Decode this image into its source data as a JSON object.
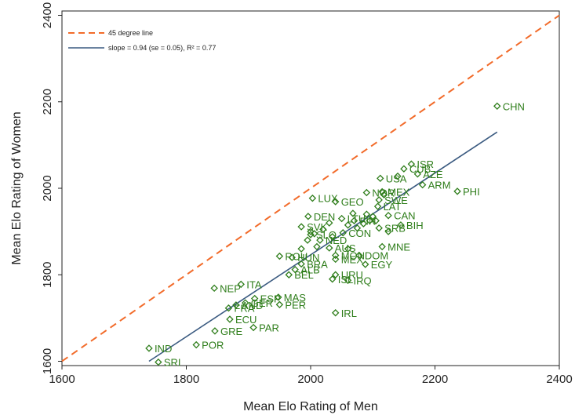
{
  "chart_data": {
    "type": "scatter",
    "xlabel": "Mean Elo Rating of Men",
    "ylabel": "Mean Elo Rating of Women",
    "xlim": [
      1600,
      2400
    ],
    "ylim": [
      1590,
      2410
    ],
    "xticks": [
      "1600",
      "1800",
      "2000",
      "2200",
      "2400"
    ],
    "yticks": [
      "1600",
      "1800",
      "2000",
      "2200",
      "2400"
    ],
    "grid": false,
    "legend_position": "top-left",
    "legend": [
      {
        "label": "45 degree line",
        "style": "dashed",
        "color": "#f26b2a"
      },
      {
        "label": "slope = 0.94 (se = 0.05), R² = 0.77",
        "style": "solid",
        "color": "#3a5a80"
      }
    ],
    "reference_line": {
      "x": [
        1600,
        2400
      ],
      "y": [
        1600,
        2400
      ]
    },
    "fit_line": {
      "x": [
        1740,
        2300
      ],
      "y": [
        1600,
        2130
      ]
    },
    "marker_color": "#2e7d1a",
    "points": [
      {
        "label": "CHN",
        "x": 2300,
        "y": 2190
      },
      {
        "label": "PHI",
        "x": 2236,
        "y": 1993
      },
      {
        "label": "ISR",
        "x": 2162,
        "y": 2056
      },
      {
        "label": "CUB",
        "x": 2150,
        "y": 2045
      },
      {
        "label": "AZE",
        "x": 2172,
        "y": 2033
      },
      {
        "label": "ARM",
        "x": 2180,
        "y": 2008
      },
      {
        "label": "USA",
        "x": 2112,
        "y": 2023
      },
      {
        "label": "NOR",
        "x": 2090,
        "y": 1990
      },
      {
        "label": "MEX",
        "x": 2115,
        "y": 1992
      },
      {
        "label": "SWE",
        "x": 2110,
        "y": 1973
      },
      {
        "label": "LAT",
        "x": 2108,
        "y": 1958
      },
      {
        "label": "CAN",
        "x": 2125,
        "y": 1937
      },
      {
        "label": "BIH",
        "x": 2145,
        "y": 1915
      },
      {
        "label": "SRB",
        "x": 2110,
        "y": 1908
      },
      {
        "label": "LUX",
        "x": 2003,
        "y": 1977
      },
      {
        "label": "GEO",
        "x": 2040,
        "y": 1969
      },
      {
        "label": "DEN",
        "x": 1996,
        "y": 1935
      },
      {
        "label": "SVK",
        "x": 1985,
        "y": 1911
      },
      {
        "label": "LTU",
        "x": 2050,
        "y": 1930
      },
      {
        "label": "FIN",
        "x": 2070,
        "y": 1925
      },
      {
        "label": "CON",
        "x": 2052,
        "y": 1897
      },
      {
        "label": "SLO",
        "x": 2000,
        "y": 1893
      },
      {
        "label": "NED",
        "x": 2015,
        "y": 1880
      },
      {
        "label": "IRL",
        "x": 2040,
        "y": 1712
      },
      {
        "label": "AUS",
        "x": 2030,
        "y": 1862
      },
      {
        "label": "MON",
        "x": 2040,
        "y": 1845
      },
      {
        "label": "MNE",
        "x": 2115,
        "y": 1865
      },
      {
        "label": "DOM",
        "x": 2078,
        "y": 1845
      },
      {
        "label": "MEX",
        "x": 2040,
        "y": 1836
      },
      {
        "label": "EGY",
        "x": 2088,
        "y": 1824
      },
      {
        "label": "ROU",
        "x": 1950,
        "y": 1843
      },
      {
        "label": "HUN",
        "x": 1970,
        "y": 1840
      },
      {
        "label": "BRA",
        "x": 1985,
        "y": 1825
      },
      {
        "label": "ALB",
        "x": 1975,
        "y": 1812
      },
      {
        "label": "BEL",
        "x": 1965,
        "y": 1800
      },
      {
        "label": "URU",
        "x": 2040,
        "y": 1800
      },
      {
        "label": "ISL",
        "x": 2035,
        "y": 1790
      },
      {
        "label": "IRQ",
        "x": 2060,
        "y": 1787
      },
      {
        "label": "NEP",
        "x": 1845,
        "y": 1769
      },
      {
        "label": "ITA",
        "x": 1888,
        "y": 1778
      },
      {
        "label": "ESP",
        "x": 1910,
        "y": 1745
      },
      {
        "label": "MAS",
        "x": 1948,
        "y": 1748
      },
      {
        "label": "PER",
        "x": 1950,
        "y": 1731
      },
      {
        "label": "GER",
        "x": 1895,
        "y": 1735
      },
      {
        "label": "AND",
        "x": 1880,
        "y": 1730
      },
      {
        "label": "FRA",
        "x": 1868,
        "y": 1723
      },
      {
        "label": "ECU",
        "x": 1870,
        "y": 1697
      },
      {
        "label": "PAR",
        "x": 1908,
        "y": 1678
      },
      {
        "label": "GRE",
        "x": 1846,
        "y": 1670
      },
      {
        "label": "POR",
        "x": 1816,
        "y": 1638
      },
      {
        "label": "IND",
        "x": 1740,
        "y": 1630
      },
      {
        "label": "SRI",
        "x": 1755,
        "y": 1598
      }
    ],
    "extra_markers": [
      {
        "x": 2090,
        "y": 1940
      },
      {
        "x": 2095,
        "y": 1925
      },
      {
        "x": 2085,
        "y": 1918
      },
      {
        "x": 2060,
        "y": 1915
      },
      {
        "x": 2030,
        "y": 1920
      },
      {
        "x": 2020,
        "y": 1905
      },
      {
        "x": 2010,
        "y": 1865
      },
      {
        "x": 1995,
        "y": 1880
      },
      {
        "x": 2068,
        "y": 1942
      },
      {
        "x": 2125,
        "y": 1900
      },
      {
        "x": 2100,
        "y": 1935
      },
      {
        "x": 2060,
        "y": 1860
      },
      {
        "x": 2105,
        "y": 1925
      },
      {
        "x": 2075,
        "y": 1908
      },
      {
        "x": 2035,
        "y": 1888
      },
      {
        "x": 2000,
        "y": 1900
      },
      {
        "x": 1985,
        "y": 1860
      },
      {
        "x": 2140,
        "y": 2028
      },
      {
        "x": 2118,
        "y": 1985
      },
      {
        "x": 2006,
        "y": 1895
      }
    ]
  }
}
